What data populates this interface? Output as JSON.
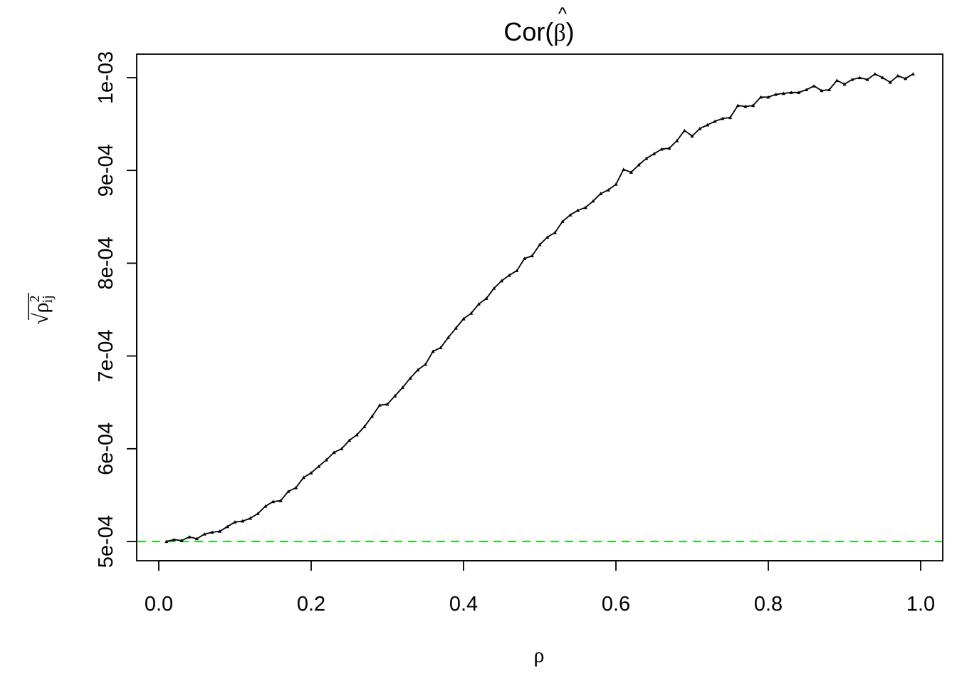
{
  "chart_data": {
    "type": "line",
    "title": "Cor(β̂)",
    "title_parts": {
      "prefix": "Cor(",
      "symbol": "β",
      "hat": "^",
      "suffix": ")"
    },
    "xlabel": "ρ",
    "ylabel": {
      "radical": "√",
      "base": "ρ",
      "superscript": "2",
      "subscript": "ij"
    },
    "xlim": [
      0.0,
      1.0
    ],
    "ylim": [
      0.0005,
      0.001
    ],
    "x_ticks": [
      0.0,
      0.2,
      0.4,
      0.6,
      0.8,
      1.0
    ],
    "x_tick_labels": [
      "0.0",
      "0.2",
      "0.4",
      "0.6",
      "0.8",
      "1.0"
    ],
    "y_ticks": [
      0.0005,
      0.0006,
      0.0007,
      0.0008,
      0.0009,
      0.001
    ],
    "y_tick_labels": [
      "5e-04",
      "6e-04",
      "7e-04",
      "8e-04",
      "9e-04",
      "1e-03"
    ],
    "grid": false,
    "legend": "none",
    "reference_line": {
      "y": 0.0005,
      "style": "dashed",
      "color": "#00ee00"
    },
    "series": [
      {
        "color": "#000000",
        "marker": "triangle",
        "x": [
          0.01,
          0.02,
          0.03,
          0.04,
          0.05,
          0.06,
          0.07,
          0.08,
          0.09,
          0.1,
          0.11,
          0.12,
          0.13,
          0.14,
          0.15,
          0.16,
          0.17,
          0.18,
          0.19,
          0.2,
          0.21,
          0.22,
          0.23,
          0.24,
          0.25,
          0.26,
          0.27,
          0.28,
          0.29,
          0.3,
          0.31,
          0.32,
          0.33,
          0.34,
          0.35,
          0.36,
          0.37,
          0.38,
          0.39,
          0.4,
          0.41,
          0.42,
          0.43,
          0.44,
          0.45,
          0.46,
          0.47,
          0.48,
          0.49,
          0.5,
          0.51,
          0.52,
          0.53,
          0.54,
          0.55,
          0.56,
          0.57,
          0.58,
          0.59,
          0.6,
          0.61,
          0.62,
          0.63,
          0.64,
          0.65,
          0.66,
          0.67,
          0.68,
          0.69,
          0.7,
          0.71,
          0.72,
          0.73,
          0.74,
          0.75,
          0.76,
          0.77,
          0.78,
          0.79,
          0.8,
          0.81,
          0.82,
          0.83,
          0.84,
          0.85,
          0.86,
          0.87,
          0.88,
          0.89,
          0.9,
          0.91,
          0.92,
          0.93,
          0.94,
          0.95,
          0.96,
          0.97,
          0.98,
          0.99
        ],
        "y": [
          0.0005,
          0.000502,
          0.000501,
          0.000505,
          0.000503,
          0.000508,
          0.00051,
          0.000511,
          0.000516,
          0.000521,
          0.000522,
          0.000525,
          0.00053,
          0.000538,
          0.000543,
          0.000544,
          0.000554,
          0.000558,
          0.000569,
          0.000574,
          0.000581,
          0.000588,
          0.000596,
          0.0006,
          0.000609,
          0.000615,
          0.000624,
          0.000635,
          0.000647,
          0.000648,
          0.000657,
          0.000666,
          0.000676,
          0.000685,
          0.000691,
          0.000705,
          0.000709,
          0.00072,
          0.00073,
          0.00074,
          0.000746,
          0.000756,
          0.000762,
          0.000773,
          0.000781,
          0.000787,
          0.000792,
          0.000805,
          0.000808,
          0.00082,
          0.000828,
          0.000833,
          0.000845,
          0.000852,
          0.000857,
          0.00086,
          0.000867,
          0.000875,
          0.000879,
          0.000885,
          0.000901,
          0.000898,
          0.000906,
          0.000913,
          0.000918,
          0.000923,
          0.000924,
          0.000932,
          0.000943,
          0.000937,
          0.000945,
          0.000949,
          0.000953,
          0.000956,
          0.000957,
          0.00097,
          0.000969,
          0.00097,
          0.000979,
          0.000979,
          0.000982,
          0.000983,
          0.000984,
          0.000984,
          0.000987,
          0.000991,
          0.000986,
          0.000987,
          0.000997,
          0.000993,
          0.000998,
          0.001,
          0.000998,
          0.001004,
          0.001,
          0.000995,
          0.001002,
          0.000999,
          0.001004
        ]
      }
    ]
  }
}
